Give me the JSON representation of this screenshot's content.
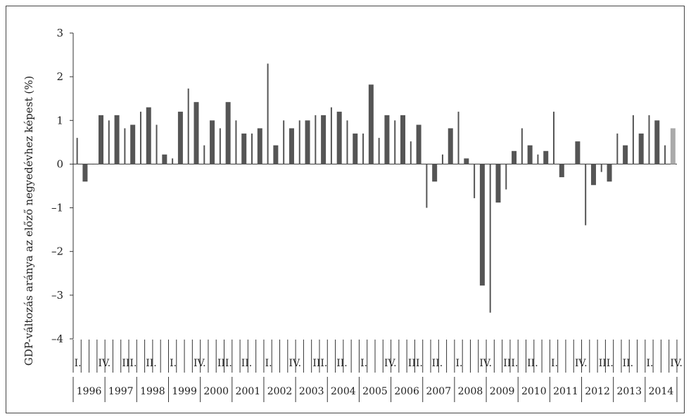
{
  "chart_data": {
    "type": "bar",
    "title": "",
    "ylabel": "GDP-változás aránya az előző negyedévhez képest (%)",
    "xlabel": "",
    "ylim": [
      -4,
      3
    ],
    "yticks": [
      3,
      2,
      1,
      0,
      -1,
      -2,
      -3,
      -4
    ],
    "ytick_labels": [
      "3",
      "2",
      "1",
      "0",
      "–1",
      "–2",
      "–3",
      "–4"
    ],
    "years": [
      "1996",
      "1997",
      "1998",
      "1999",
      "2000",
      "2001",
      "2002",
      "2003",
      "2004",
      "2005",
      "2006",
      "2007",
      "2008",
      "2009",
      "2010",
      "2011",
      "2012",
      "2013",
      "2014"
    ],
    "quarter_label_rows": [
      [
        "I.",
        "IV."
      ],
      [
        "III."
      ],
      [
        "II."
      ],
      [
        "I.",
        "IV."
      ],
      [
        "III."
      ],
      [
        "II."
      ],
      [
        "I.",
        "IV."
      ],
      [
        "III."
      ],
      [
        "II."
      ],
      [
        "I.",
        "IV."
      ],
      [
        "III."
      ],
      [
        "II."
      ],
      [
        "I.",
        "IV."
      ],
      [
        "III."
      ],
      [
        "II."
      ],
      [
        "I.",
        "IV."
      ],
      [
        "III."
      ],
      [
        "II."
      ],
      [
        "I.",
        "IV."
      ]
    ],
    "quarter_labels_flat": [
      "I.",
      "IV.",
      "III.",
      "II.",
      "I.",
      "IV.",
      "III.",
      "II.",
      "I.",
      "IV.",
      "III.",
      "II.",
      "I.",
      "IV.",
      "III.",
      "II.",
      "I.",
      "IV.",
      "III.",
      "II.",
      "I.",
      "IV.",
      "III.",
      "II.",
      "I.",
      "IV."
    ],
    "values": [
      0.6,
      -0.4,
      0.0,
      1.12,
      1.0,
      1.12,
      0.82,
      0.9,
      1.2,
      1.3,
      0.9,
      0.22,
      0.13,
      1.2,
      1.73,
      1.42,
      0.43,
      1.0,
      0.82,
      1.42,
      1.0,
      0.7,
      0.7,
      0.82,
      2.3,
      0.43,
      1.0,
      0.82,
      1.0,
      1.0,
      1.12,
      1.12,
      1.3,
      1.2,
      1.0,
      0.7,
      0.7,
      1.82,
      0.6,
      1.12,
      1.0,
      1.12,
      0.52,
      0.9,
      -1.0,
      -0.4,
      0.22,
      0.82,
      1.2,
      0.13,
      -0.78,
      -2.78,
      -3.4,
      -0.88,
      -0.58,
      0.3,
      0.82,
      0.43,
      0.22,
      0.3,
      1.2,
      -0.3,
      0.0,
      0.52,
      -1.4,
      -0.48,
      -0.18,
      -0.4,
      0.7,
      0.43,
      1.12,
      0.7,
      1.12,
      1.0,
      0.43,
      0.82
    ],
    "bar_colors": {
      "main": "#555555",
      "last": "#aaaaaa"
    },
    "grid": false,
    "legend": "none"
  }
}
